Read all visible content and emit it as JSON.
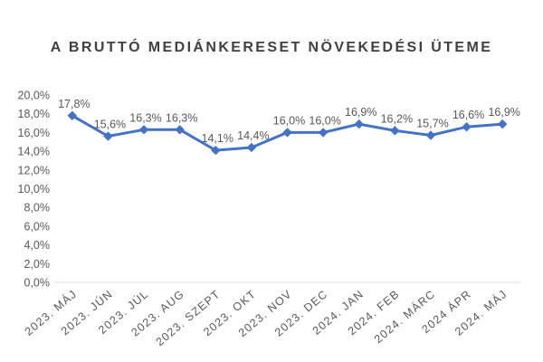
{
  "chart_data": {
    "type": "line",
    "title": "A BRUTTÓ MEDIÁNKERESET NÖVEKEDÉSI ÜTEME",
    "categories": [
      "2023. MÁJ",
      "2023. JÚN",
      "2023. JÚL",
      "2023. AUG",
      "2023. SZEPT",
      "2023. OKT",
      "2023. NOV",
      "2023. DEC",
      "2024. JAN",
      "2024. FEB",
      "2024. MÁRC",
      "2024 ÁPR",
      "2024. MÁJ"
    ],
    "series": [
      {
        "values": [
          17.8,
          15.6,
          16.3,
          16.3,
          14.1,
          14.4,
          16.0,
          16.0,
          16.9,
          16.2,
          15.7,
          16.6,
          16.9
        ],
        "data_labels": [
          "17,8%",
          "15,6%",
          "16,3%",
          "16,3%",
          "14,1%",
          "14,4%",
          "16,0%",
          "16,0%",
          "16,9%",
          "16,2%",
          "15,7%",
          "16,6%",
          "16,9%"
        ]
      }
    ],
    "yticks": [
      "0,0%",
      "2,0%",
      "4,0%",
      "6,0%",
      "8,0%",
      "10,0%",
      "12,0%",
      "14,0%",
      "16,0%",
      "18,0%",
      "20,0%"
    ],
    "ylim": [
      0,
      20
    ],
    "grid": false,
    "legend": "none",
    "colors": {
      "line": "#4472c4",
      "text": "#595959",
      "title": "#404040",
      "axis": "#d9d9d9"
    }
  }
}
